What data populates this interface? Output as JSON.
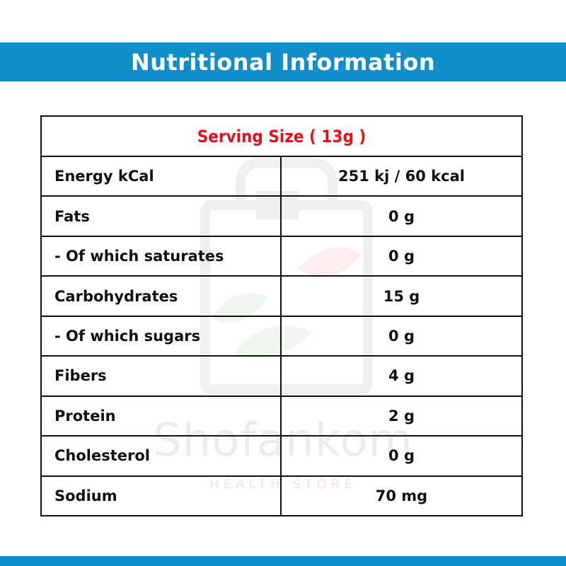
{
  "header": {
    "title": "Nutritional Information"
  },
  "table": {
    "serving_size": "Serving Size ( 13g )",
    "rows": [
      {
        "label": "Energy kCal",
        "value": "251 kj / 60 kcal"
      },
      {
        "label": "Fats",
        "value": "0 g"
      },
      {
        "label": "- Of which saturates",
        "value": "0 g"
      },
      {
        "label": "Carbohydrates",
        "value": "15 g"
      },
      {
        "label": "- Of which sugars",
        "value": "0 g"
      },
      {
        "label": "Fibers",
        "value": "4 g"
      },
      {
        "label": "Protein",
        "value": "2 g"
      },
      {
        "label": "Cholesterol",
        "value": "0 g"
      },
      {
        "label": "Sodium",
        "value": "70 mg"
      }
    ]
  },
  "watermark": {
    "name": "Shofankom",
    "tagline": "HEALTH STORE"
  },
  "colors": {
    "banner": "#0f8ec9",
    "serving_text": "#e0121a",
    "border": "#111111"
  }
}
